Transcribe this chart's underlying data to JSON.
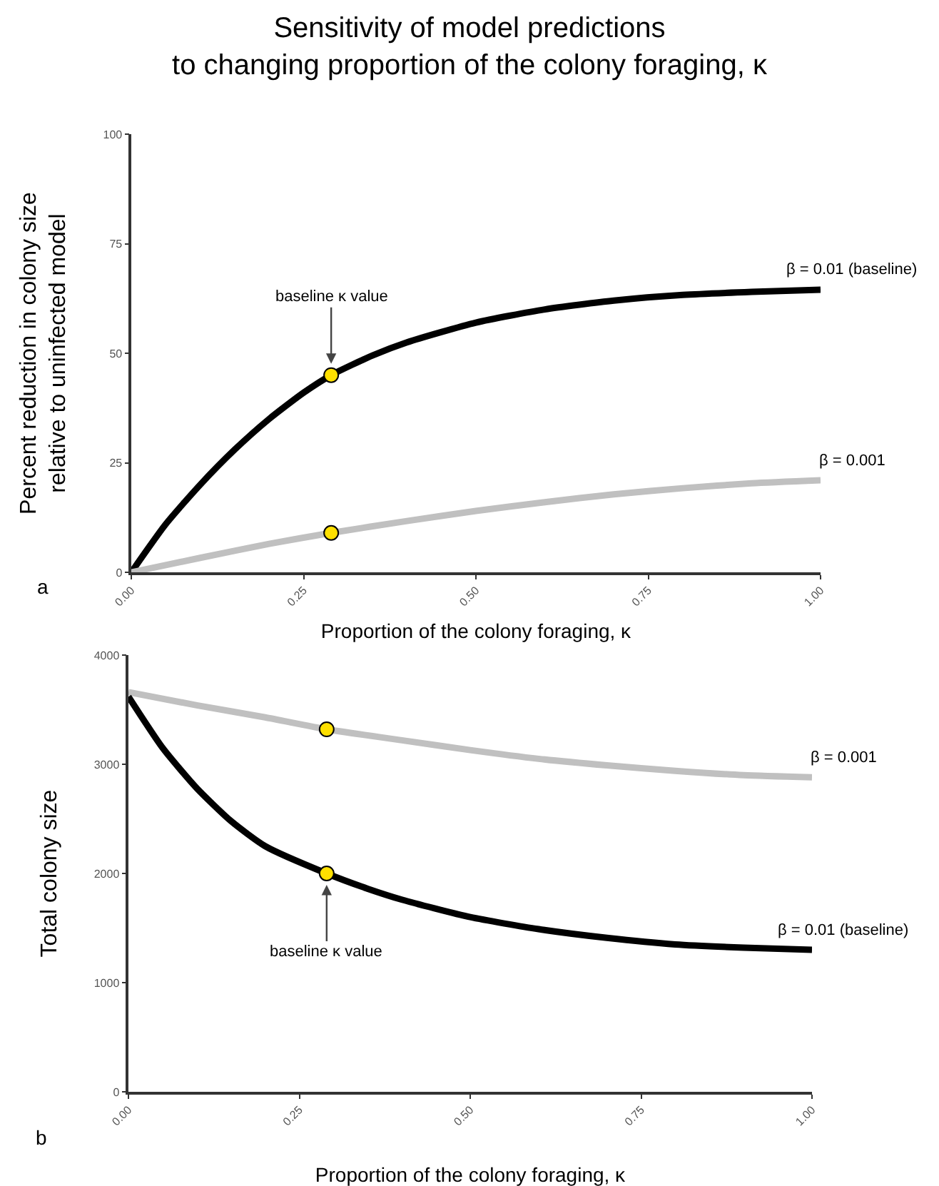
{
  "chart_data": [
    {
      "type": "line",
      "title": "Sensitivity of model predictions\nto changing proportion of the colony foraging, κ",
      "xlabel": "Proportion of the colony foraging, κ",
      "ylabel": "Percent reduction in colony size\nrelative to uninfected model",
      "xlim": [
        0,
        1
      ],
      "ylim": [
        0,
        100
      ],
      "xticks": [
        {
          "value": 0,
          "label": "0.00"
        },
        {
          "value": 0.25,
          "label": "0.25"
        },
        {
          "value": 0.5,
          "label": "0.50"
        },
        {
          "value": 0.75,
          "label": "0.75"
        },
        {
          "value": 1,
          "label": "1.00"
        }
      ],
      "yticks": [
        0,
        25,
        50,
        75,
        100
      ],
      "grid": false,
      "legend": false,
      "line_style": "solid",
      "marker": "none",
      "series": [
        {
          "name": "β = 0.01 (baseline)",
          "color": "#000000",
          "x": [
            0,
            0.05,
            0.1,
            0.15,
            0.2,
            0.25,
            0.29,
            0.35,
            0.4,
            0.5,
            0.6,
            0.7,
            0.8,
            0.9,
            1
          ],
          "values": [
            0,
            11,
            20,
            28,
            35,
            41,
            45,
            49.5,
            52.5,
            57,
            60,
            62,
            63.3,
            64,
            64.5
          ]
        },
        {
          "name": "β = 0.001",
          "color": "#c0c0c0",
          "x": [
            0,
            0.1,
            0.2,
            0.29,
            0.4,
            0.5,
            0.6,
            0.7,
            0.8,
            0.9,
            1
          ],
          "values": [
            0,
            3.3,
            6.5,
            9,
            11.7,
            14,
            16,
            17.8,
            19.2,
            20.3,
            21
          ]
        },
        {
          "type": "scatter",
          "marker": "circle",
          "color": "#ffe000",
          "x": [
            0.29,
            0.29
          ],
          "values": [
            45,
            9
          ]
        }
      ],
      "annotations": [
        {
          "text": "baseline κ value",
          "x": 0.29,
          "y": 45
        },
        "a"
      ]
    },
    {
      "type": "line",
      "xlabel": "Proportion of the colony foraging, κ",
      "ylabel": "Total colony size",
      "xlim": [
        0,
        1
      ],
      "ylim": [
        0,
        4000
      ],
      "xticks": [
        {
          "value": 0,
          "label": "0.00"
        },
        {
          "value": 0.25,
          "label": "0.25"
        },
        {
          "value": 0.5,
          "label": "0.50"
        },
        {
          "value": 0.75,
          "label": "0.75"
        },
        {
          "value": 1,
          "label": "1.00"
        }
      ],
      "yticks": [
        0,
        1000,
        2000,
        3000,
        4000
      ],
      "grid": false,
      "legend": false,
      "line_style": "solid",
      "marker": "none",
      "series": [
        {
          "name": "β = 0.001",
          "color": "#c0c0c0",
          "x": [
            0,
            0.1,
            0.2,
            0.29,
            0.4,
            0.5,
            0.6,
            0.7,
            0.8,
            0.9,
            1
          ],
          "values": [
            3660,
            3540,
            3430,
            3320,
            3220,
            3130,
            3050,
            2990,
            2940,
            2900,
            2880
          ]
        },
        {
          "name": "β = 0.01 (baseline)",
          "color": "#000000",
          "x": [
            0,
            0.05,
            0.1,
            0.15,
            0.2,
            0.29,
            0.35,
            0.4,
            0.5,
            0.6,
            0.7,
            0.8,
            0.9,
            1
          ],
          "values": [
            3620,
            3150,
            2780,
            2480,
            2250,
            2000,
            1860,
            1760,
            1600,
            1490,
            1410,
            1350,
            1320,
            1300
          ]
        },
        {
          "type": "scatter",
          "marker": "circle",
          "color": "#ffe000",
          "x": [
            0.29,
            0.29
          ],
          "values": [
            3320,
            2000
          ]
        }
      ],
      "annotations": [
        {
          "text": "baseline κ value",
          "x": 0.29,
          "y": 2000
        },
        "b"
      ]
    }
  ]
}
